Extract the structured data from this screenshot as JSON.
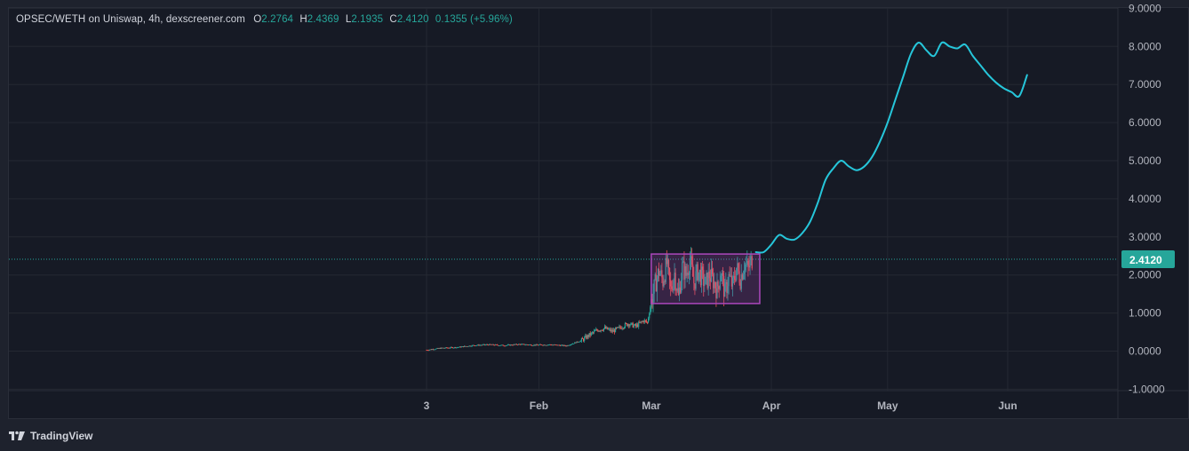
{
  "legend": {
    "pair": "OPSEC/WETH on Uniswap, 4h, dexscreener.com",
    "open_key": "O",
    "open": "2.2764",
    "high_key": "H",
    "high": "2.4369",
    "low_key": "L",
    "low": "2.1935",
    "close_key": "C",
    "close": "2.4120",
    "change": "0.1355 (+5.96%)"
  },
  "footer": {
    "brand": "TradingView"
  },
  "colors": {
    "background": "#161a25",
    "grid": "#242832",
    "up": "#26a69a",
    "down": "#ef5350",
    "projection": "#26c6da",
    "box": "#ab47bc",
    "price_badge": "#26a69a"
  },
  "chart_data": {
    "type": "line",
    "title": "",
    "ylim": [
      -1,
      9
    ],
    "y_ticks": [
      "-1.0000",
      "0.0000",
      "1.0000",
      "2.0000",
      "3.0000",
      "4.0000",
      "5.0000",
      "6.0000",
      "7.0000",
      "8.0000",
      "9.0000"
    ],
    "y_tick_values": [
      -1,
      0,
      1,
      2,
      3,
      4,
      5,
      6,
      7,
      8,
      9
    ],
    "x_ticks": [
      {
        "label": "3",
        "day": 0
      },
      {
        "label": "Feb",
        "day": 29
      },
      {
        "label": "Mar",
        "day": 58
      },
      {
        "label": "Apr",
        "day": 89
      },
      {
        "label": "May",
        "day": 119
      },
      {
        "label": "Jun",
        "day": 150
      }
    ],
    "last_price": 2.412,
    "last_price_label": "2.4120",
    "series": [
      {
        "style": "candles",
        "x": [
          0,
          4,
          8,
          12,
          16,
          20,
          24,
          28,
          32,
          36,
          40,
          42,
          44,
          46,
          48,
          50,
          52,
          54,
          56,
          57,
          58,
          59,
          60,
          61,
          62,
          63,
          64,
          65,
          66,
          67,
          68,
          69,
          70,
          71,
          72,
          73,
          74,
          75,
          76,
          77,
          78,
          79,
          80,
          81,
          82,
          83,
          84
        ],
        "values": [
          0.03,
          0.08,
          0.1,
          0.15,
          0.17,
          0.15,
          0.18,
          0.16,
          0.17,
          0.14,
          0.28,
          0.42,
          0.55,
          0.6,
          0.52,
          0.62,
          0.72,
          0.65,
          0.8,
          0.75,
          1.3,
          1.75,
          2.1,
          1.85,
          2.3,
          1.6,
          2.05,
          1.4,
          2.2,
          2.0,
          2.4,
          1.8,
          2.1,
          1.95,
          1.75,
          2.0,
          1.85,
          1.6,
          2.1,
          1.5,
          1.95,
          1.7,
          2.2,
          1.9,
          2.3,
          2.15,
          2.41
        ]
      },
      {
        "style": "projection",
        "x": [
          85,
          87,
          89,
          91,
          93,
          95,
          97,
          99,
          101,
          103,
          105,
          107,
          109,
          111,
          113,
          115,
          117,
          119,
          121,
          123,
          125,
          127,
          129,
          131,
          133,
          135,
          137,
          139,
          141,
          143,
          145,
          147,
          149,
          151,
          153,
          155
        ],
        "values": [
          2.6,
          2.6,
          2.8,
          3.05,
          2.95,
          2.93,
          3.1,
          3.4,
          3.9,
          4.5,
          4.8,
          5.0,
          4.85,
          4.75,
          4.85,
          5.1,
          5.5,
          6.0,
          6.6,
          7.2,
          7.8,
          8.1,
          7.9,
          7.75,
          8.1,
          8.0,
          7.95,
          8.05,
          7.75,
          7.5,
          7.25,
          7.05,
          6.9,
          6.8,
          6.7,
          7.25
        ]
      }
    ],
    "annotations": [
      {
        "type": "rectangle",
        "x0": 58,
        "x1": 86,
        "y0": 1.25,
        "y1": 2.55
      }
    ]
  }
}
